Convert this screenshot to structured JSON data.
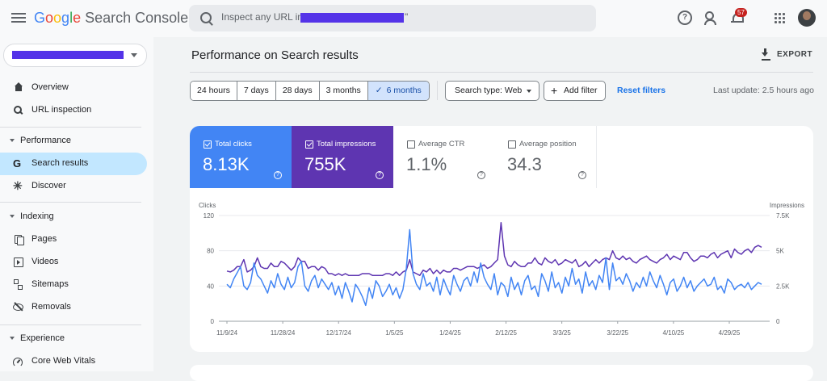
{
  "app": {
    "name": "Google Search Console",
    "logo_letters": [
      "G",
      "o",
      "o",
      "g",
      "l",
      "e"
    ],
    "logo_suffix": "Search Console"
  },
  "header": {
    "search_placeholder": "Inspect any URL in \"",
    "search_suffix": "\"",
    "notification_count": "57",
    "help_glyph": "?"
  },
  "sidebar": {
    "items": [
      {
        "label": "Overview",
        "icon": "home-icon"
      },
      {
        "label": "URL inspection",
        "icon": "search-icon"
      }
    ],
    "performance": {
      "title": "Performance",
      "items": [
        {
          "label": "Search results",
          "icon": "google-g-icon",
          "glyph": "G",
          "active": true
        },
        {
          "label": "Discover",
          "icon": "asterisk-icon",
          "glyph": "✳"
        }
      ]
    },
    "indexing": {
      "title": "Indexing",
      "items": [
        {
          "label": "Pages",
          "icon": "pages-icon"
        },
        {
          "label": "Videos",
          "icon": "video-icon"
        },
        {
          "label": "Sitemaps",
          "icon": "sitemap-icon"
        },
        {
          "label": "Removals",
          "icon": "eye-slash-icon"
        }
      ]
    },
    "experience": {
      "title": "Experience",
      "items": [
        {
          "label": "Core Web Vitals",
          "icon": "gauge-icon"
        }
      ]
    }
  },
  "main": {
    "title": "Performance on Search results",
    "export_label": "EXPORT",
    "date_ranges": [
      "24 hours",
      "7 days",
      "28 days",
      "3 months",
      "6 months"
    ],
    "selected_range_check": "✓",
    "search_type_label": "Search type: Web",
    "add_filter_label": "Add filter",
    "add_filter_glyph": "+",
    "reset_filters_label": "Reset filters",
    "last_update": "Last update: 2.5 hours ago"
  },
  "metrics": [
    {
      "label": "Total clicks",
      "value": "8.13K",
      "checked": true
    },
    {
      "label": "Total impressions",
      "value": "755K",
      "checked": true
    },
    {
      "label": "Average CTR",
      "value": "1.1%",
      "checked": false
    },
    {
      "label": "Average position",
      "value": "34.3",
      "checked": false
    }
  ],
  "metric_help_glyph": "?",
  "chart_data": {
    "type": "line",
    "left_axis_label": "Clicks",
    "right_axis_label": "Impressions",
    "left_ticks": [
      "120",
      "80",
      "40",
      "0"
    ],
    "right_ticks": [
      "7.5K",
      "5K",
      "2.5K",
      "0"
    ],
    "left_range": [
      0,
      120
    ],
    "right_range": [
      0,
      7500
    ],
    "x_ticks": [
      "11/9/24",
      "11/28/24",
      "12/17/24",
      "1/5/25",
      "1/24/25",
      "2/12/25",
      "3/3/25",
      "3/22/25",
      "4/10/25",
      "4/29/25"
    ],
    "grid": true,
    "colors": {
      "clicks": "#4285f4",
      "impressions": "#5e35b1"
    },
    "series": [
      {
        "name": "Clicks",
        "axis": "left",
        "values": [
          42,
          38,
          48,
          55,
          62,
          40,
          36,
          44,
          66,
          52,
          48,
          40,
          32,
          46,
          38,
          54,
          42,
          36,
          50,
          38,
          44,
          62,
          68,
          40,
          34,
          46,
          52,
          38,
          48,
          42,
          36,
          44,
          30,
          40,
          26,
          44,
          34,
          22,
          42,
          36,
          28,
          18,
          38,
          26,
          46,
          40,
          28,
          34,
          42,
          30,
          38,
          26,
          36,
          60,
          104,
          54,
          42,
          36,
          54,
          40,
          44,
          34,
          50,
          30,
          48,
          38,
          30,
          52,
          42,
          34,
          46,
          50,
          40,
          56,
          44,
          66,
          50,
          42,
          36,
          54,
          30,
          44,
          40,
          28,
          50,
          36,
          44,
          30,
          46,
          52,
          36,
          40,
          28,
          54,
          46,
          34,
          56,
          38,
          44,
          32,
          50,
          40,
          60,
          42,
          48,
          32,
          56,
          40,
          46,
          36,
          52,
          44,
          72,
          36,
          66,
          46,
          50,
          42,
          54,
          46,
          34,
          44,
          38,
          50,
          40,
          56,
          46,
          38,
          52,
          42,
          30,
          44,
          48,
          34,
          40,
          50,
          38,
          46,
          34,
          40,
          44,
          48,
          40,
          42,
          50,
          36,
          40,
          32,
          48,
          44,
          36,
          40,
          42,
          38,
          44,
          36,
          40,
          44,
          42
        ]
      },
      {
        "name": "Impressions",
        "axis": "right",
        "values": [
          57,
          56,
          58,
          62,
          62,
          70,
          56,
          58,
          62,
          72,
          62,
          60,
          60,
          66,
          62,
          62,
          68,
          66,
          62,
          58,
          62,
          72,
          68,
          68,
          60,
          62,
          62,
          58,
          62,
          60,
          54,
          54,
          52,
          54,
          52,
          54,
          52,
          52,
          52,
          52,
          54,
          54,
          54,
          52,
          52,
          52,
          52,
          54,
          54,
          52,
          56,
          52,
          56,
          58,
          70,
          56,
          54,
          52,
          58,
          56,
          60,
          54,
          58,
          54,
          58,
          56,
          56,
          60,
          60,
          58,
          60,
          62,
          62,
          62,
          60,
          62,
          64,
          60,
          62,
          66,
          70,
          112,
          74,
          64,
          62,
          68,
          64,
          62,
          62,
          66,
          66,
          72,
          66,
          64,
          72,
          68,
          66,
          70,
          64,
          66,
          70,
          68,
          66,
          70,
          62,
          64,
          68,
          62,
          66,
          70,
          66,
          70,
          72,
          70,
          80,
          72,
          70,
          74,
          70,
          72,
          68,
          66,
          70,
          72,
          74,
          70,
          68,
          66,
          70,
          72,
          76,
          70,
          74,
          72,
          70,
          78,
          78,
          72,
          68,
          70,
          74,
          74,
          72,
          76,
          78,
          72,
          76,
          78,
          80,
          72,
          82,
          78,
          76,
          80,
          82,
          78,
          84,
          86,
          84
        ]
      }
    ]
  }
}
